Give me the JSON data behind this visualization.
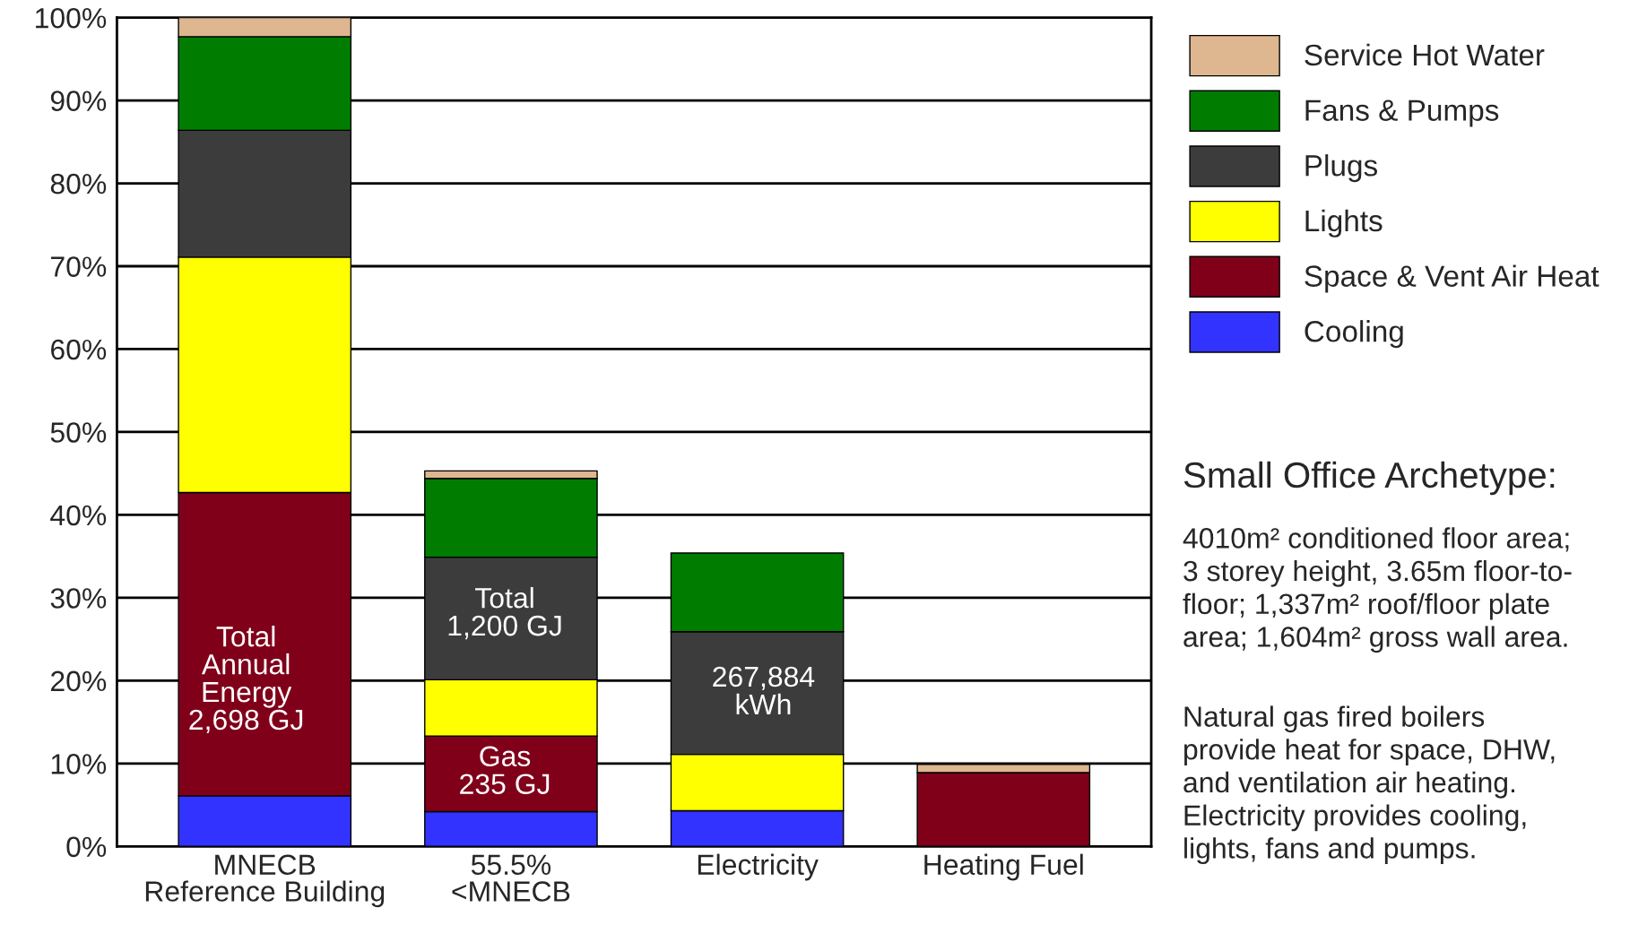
{
  "chart_data": {
    "type": "bar",
    "stacked": true,
    "title": "Small Office Archetype:",
    "categories": [
      "MNECB\nReference Building",
      "55.5%\n<MNECB",
      "Electricity",
      "Heating Fuel"
    ],
    "series": [
      {
        "name": "Cooling",
        "color": "#3333ff",
        "values": [
          6.1,
          4.2,
          4.3,
          null
        ]
      },
      {
        "name": "Space & Vent Air Heat",
        "color": "#80001a",
        "values": [
          36.6,
          9.1,
          null,
          8.9
        ]
      },
      {
        "name": "Lights",
        "color": "#ffff00",
        "values": [
          28.4,
          6.8,
          6.8,
          null
        ]
      },
      {
        "name": "Plugs",
        "color": "#3c3c3c",
        "values": [
          15.3,
          14.8,
          14.8,
          null
        ]
      },
      {
        "name": "Fans & Pumps",
        "color": "#007d00",
        "values": [
          11.3,
          9.5,
          9.5,
          null
        ]
      },
      {
        "name": "Service Hot Water",
        "color": "#deb690",
        "values": [
          2.3,
          0.9,
          null,
          1.0
        ]
      }
    ],
    "ylim": [
      0,
      100
    ],
    "yticks": [
      {
        "value": 0,
        "label": "0%"
      },
      {
        "value": 10,
        "label": "10%"
      },
      {
        "value": 20,
        "label": "20%"
      },
      {
        "value": 30,
        "label": "30%"
      },
      {
        "value": 40,
        "label": "40%"
      },
      {
        "value": 50,
        "label": "50%"
      },
      {
        "value": 60,
        "label": "60%"
      },
      {
        "value": 70,
        "label": "70%"
      },
      {
        "value": 80,
        "label": "80%"
      },
      {
        "value": 90,
        "label": "90%"
      },
      {
        "value": 100,
        "label": "100%"
      }
    ],
    "grid": "y",
    "legend": "right",
    "annotations": [
      "Total\nAnnual\nEnergy\n2,698 GJ",
      "Total\n1,200 GJ",
      "Gas\n235 GJ",
      "267,884\nkWh",
      "4010m² conditioned floor area;\n3 storey height, 3.65m floor-to-\nfloor; 1,337m² roof/floor plate\narea; 1,604m² gross wall area.",
      "Natural gas fired boilers\nprovide heat for space, DHW,\nand ventilation air heating.\nElectricity provides cooling,\nlights, fans and pumps."
    ]
  }
}
